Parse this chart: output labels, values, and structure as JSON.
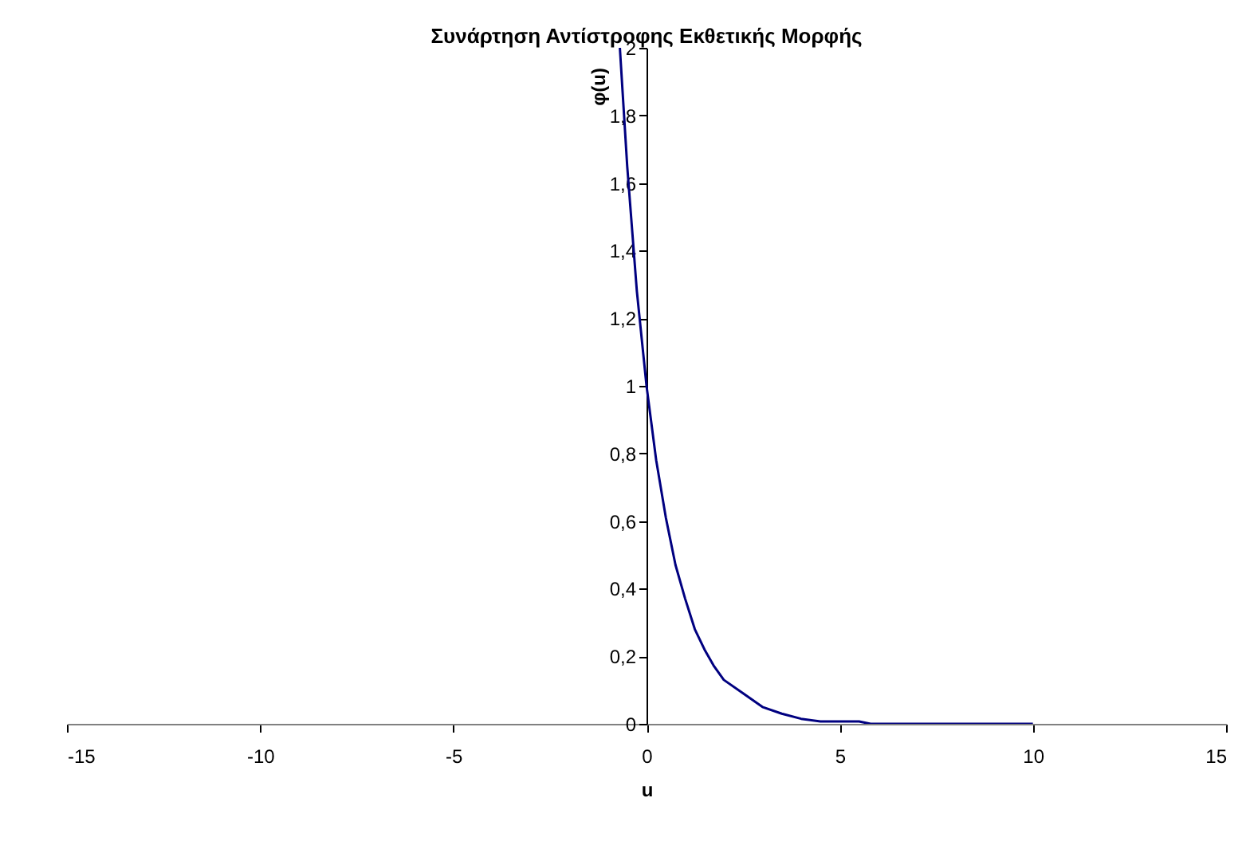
{
  "chart_data": {
    "type": "line",
    "title": "Συνάρτηση Αντίστροφης Εκθετικής Μορφής",
    "xlabel": "u",
    "ylabel": "φ(u)",
    "x": [
      -0.69,
      -0.5,
      -0.25,
      0,
      0.25,
      0.5,
      0.75,
      1,
      1.25,
      1.5,
      1.75,
      2,
      2.5,
      3,
      3.5,
      4,
      4.5,
      5.5,
      5.8,
      10
    ],
    "series": [
      {
        "color": "#000080",
        "values": [
          2,
          1.65,
          1.28,
          1,
          0.78,
          0.61,
          0.47,
          0.37,
          0.28,
          0.22,
          0.17,
          0.13,
          0.09,
          0.05,
          0.03,
          0.015,
          0.007,
          0.007,
          0,
          0
        ]
      }
    ],
    "xlim": [
      -15,
      15
    ],
    "xticks": [
      -15,
      -10,
      -5,
      0,
      5,
      10,
      15
    ],
    "ylim": [
      0,
      2
    ],
    "yticks": [
      0,
      {
        "value": 0.2,
        "label": "0,2"
      },
      {
        "value": 0.4,
        "label": "0,4"
      },
      {
        "value": 0.6,
        "label": "0,6"
      },
      {
        "value": 0.8,
        "label": "0,8"
      },
      1,
      {
        "value": 1.2,
        "label": "1,2"
      },
      {
        "value": 1.4,
        "label": "1,4"
      },
      {
        "value": 1.6,
        "label": "1,6"
      },
      {
        "value": 1.8,
        "label": "1,8"
      },
      2
    ],
    "grid": false,
    "marker": "none",
    "line_style": "solid"
  }
}
